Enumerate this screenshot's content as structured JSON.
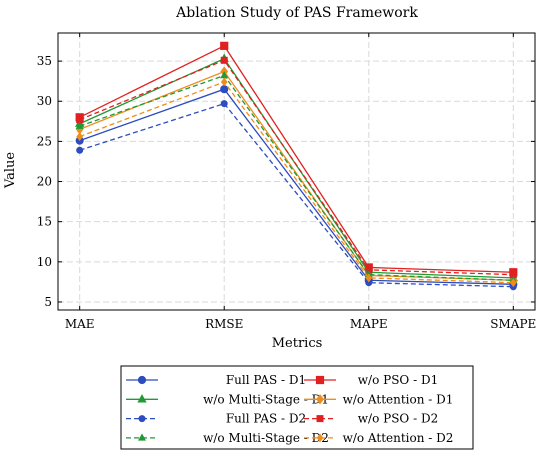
{
  "chart_data": {
    "type": "line",
    "title": "Ablation Study of PAS Framework",
    "xlabel": "Metrics",
    "ylabel": "Value",
    "categories": [
      "MAE",
      "RMSE",
      "MAPE",
      "SMAPE"
    ],
    "xlim": [
      -0.15,
      3.15
    ],
    "ylim": [
      4,
      38.5
    ],
    "yticks": [
      5,
      10,
      15,
      20,
      25,
      30,
      35
    ],
    "grid": true,
    "legend_position": "bottom",
    "series": [
      {
        "name": "Full PAS - D1",
        "values": [
          25.1,
          31.5,
          7.7,
          7.2
        ],
        "color": "#2c4cbf",
        "dash": "solid",
        "marker": "circle"
      },
      {
        "name": "w/o PSO - D1",
        "values": [
          28.0,
          36.9,
          9.3,
          8.7
        ],
        "color": "#e02121",
        "dash": "solid",
        "marker": "square"
      },
      {
        "name": "w/o Multi-Stage - D1",
        "values": [
          27.2,
          35.3,
          8.7,
          8.0
        ],
        "color": "#1f9a35",
        "dash": "solid",
        "marker": "triangle"
      },
      {
        "name": "w/o Attention - D1",
        "values": [
          26.5,
          33.7,
          8.3,
          7.7
        ],
        "color": "#f08c1a",
        "dash": "solid",
        "marker": "diamond"
      },
      {
        "name": "Full PAS - D2",
        "values": [
          23.9,
          29.7,
          7.4,
          6.9
        ],
        "color": "#2c4cbf",
        "dash": "dashed",
        "marker": "circle"
      },
      {
        "name": "w/o PSO - D2",
        "values": [
          27.7,
          35.1,
          9.0,
          8.4
        ],
        "color": "#e02121",
        "dash": "dashed",
        "marker": "square"
      },
      {
        "name": "w/o Multi-Stage - D2",
        "values": [
          26.9,
          33.2,
          8.4,
          7.7
        ],
        "color": "#1f9a35",
        "dash": "dashed",
        "marker": "triangle"
      },
      {
        "name": "w/o Attention - D2",
        "values": [
          25.6,
          32.4,
          8.0,
          7.4
        ],
        "color": "#f08c1a",
        "dash": "dashed",
        "marker": "diamond"
      }
    ]
  }
}
